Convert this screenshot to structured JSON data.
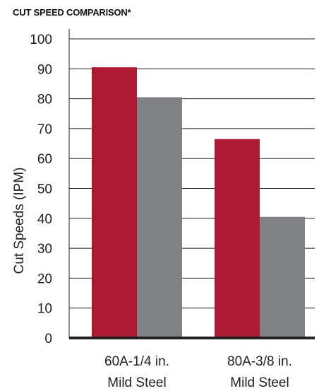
{
  "chart_data": {
    "type": "bar",
    "title": "CUT SPEED COMPARISON*",
    "ylabel": "Cut Speeds (IPM)",
    "xlabel": "",
    "ylim": [
      0,
      100
    ],
    "yticks": [
      0,
      10,
      20,
      30,
      40,
      50,
      60,
      70,
      80,
      90,
      100
    ],
    "grid": true,
    "categories": [
      [
        "60A-1/4 in.",
        "Mild Steel"
      ],
      [
        "80A-3/8 in.",
        "Mild Steel"
      ]
    ],
    "series": [
      {
        "values": [
          90.5,
          66.5
        ],
        "color": "#ab1a30"
      },
      {
        "values": [
          80.5,
          40.5
        ],
        "color": "#808185"
      }
    ]
  }
}
